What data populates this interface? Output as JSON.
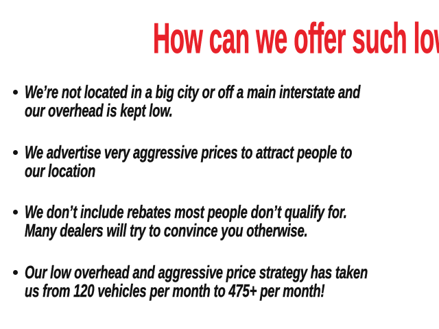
{
  "page": {
    "background_color": "#ffffff",
    "accent_red": "#e8222a",
    "text_color": "#121212"
  },
  "headline": {
    "text": "How can we offer such low prices?"
  },
  "bullets": [
    {
      "lines": [
        "We’re not located in a big city or off a main interstate and",
        "our overhead is kept low."
      ]
    },
    {
      "lines": [
        "We advertise very aggressive prices to attract people to",
        "our location"
      ]
    },
    {
      "lines": [
        "We don’t include rebates most people don’t qualify for.",
        "Many dealers will try to convince you otherwise."
      ]
    },
    {
      "lines": [
        "Our low overhead and aggressive price strategy has taken",
        "us from 120 vehicles per month to 475+ per month!"
      ]
    }
  ]
}
